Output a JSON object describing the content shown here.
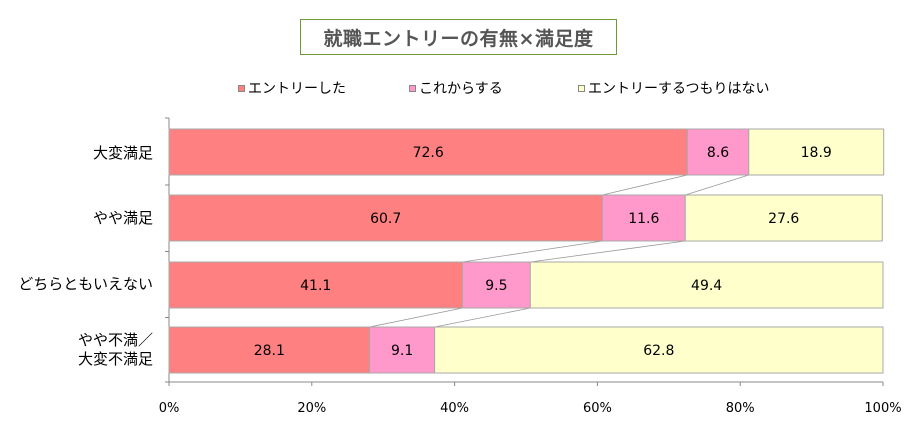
{
  "chart_data": {
    "type": "bar",
    "orientation": "horizontal",
    "stacked": true,
    "title": "就職エントリーの有無×満足度",
    "categories": [
      "大変満足",
      "やや満足",
      "どちらともいえない",
      "やや不満／大変不満足"
    ],
    "category_lines": [
      [
        "大変満足"
      ],
      [
        "やや満足"
      ],
      [
        "どちらともいえない"
      ],
      [
        "やや不満／",
        "大変不満足"
      ]
    ],
    "series": [
      {
        "name": "エントリーした",
        "values": [
          72.6,
          60.7,
          41.1,
          28.1
        ],
        "color": "#ff8080"
      },
      {
        "name": "これからする",
        "values": [
          8.6,
          11.6,
          9.5,
          9.1
        ],
        "color": "#ff99cc"
      },
      {
        "name": "エントリーするつもりはない",
        "values": [
          18.9,
          27.6,
          49.4,
          62.8
        ],
        "color": "#ffffcc"
      }
    ],
    "xlim": [
      0,
      100
    ],
    "x_ticks": [
      "0%",
      "20%",
      "40%",
      "60%",
      "80%",
      "100%"
    ],
    "legend_position": "top",
    "series_lines": true,
    "grid": false
  }
}
